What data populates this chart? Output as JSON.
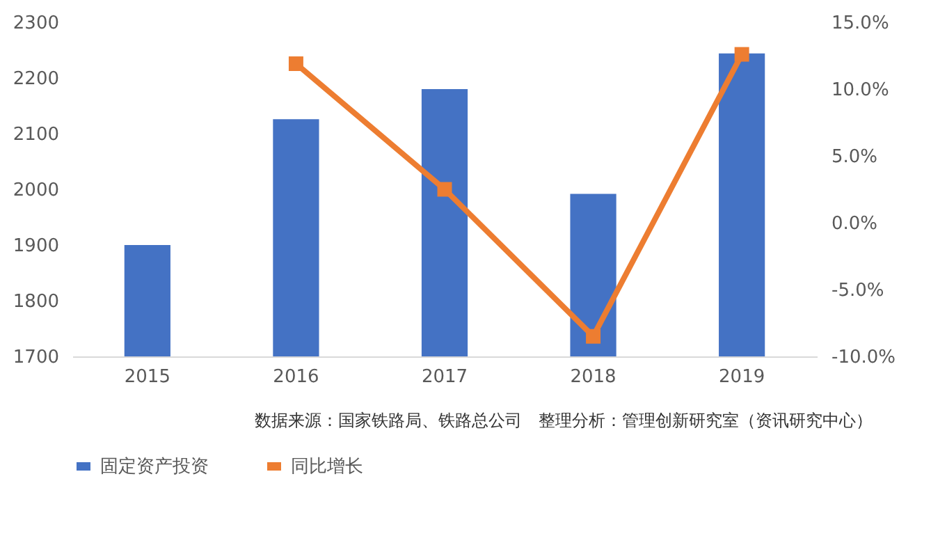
{
  "chart_data": {
    "type": "bar",
    "categories": [
      "2015",
      "2016",
      "2017",
      "2018",
      "2019"
    ],
    "series": [
      {
        "name": "固定资产投资",
        "color": "#4472c4",
        "values": [
          1900,
          2126,
          2180,
          1992,
          2244
        ]
      },
      {
        "name": "同比增长",
        "type": "line",
        "axis": "y2",
        "color": "#ed7d31",
        "marker": "square",
        "values": [
          null,
          11.9,
          2.5,
          -8.5,
          12.6
        ]
      }
    ],
    "ylim": [
      1700,
      2300
    ],
    "yticks": [
      1700,
      1800,
      1900,
      2000,
      2100,
      2200,
      2300
    ],
    "y2lim": [
      -10,
      15
    ],
    "y2ticks": [
      {
        "value": -10,
        "label": "-10.0%"
      },
      {
        "value": -5,
        "label": "-5.0%"
      },
      {
        "value": 0,
        "label": "0.0%"
      },
      {
        "value": 5,
        "label": "5.0%"
      },
      {
        "value": 10,
        "label": "10.0%"
      },
      {
        "value": 15,
        "label": "15.0%"
      }
    ],
    "grid": false,
    "legend": "bottom",
    "annotations": [
      "数据来源：国家铁路局、铁路总公司　整理分析：管理创新研究室（资讯研究中心）"
    ]
  }
}
